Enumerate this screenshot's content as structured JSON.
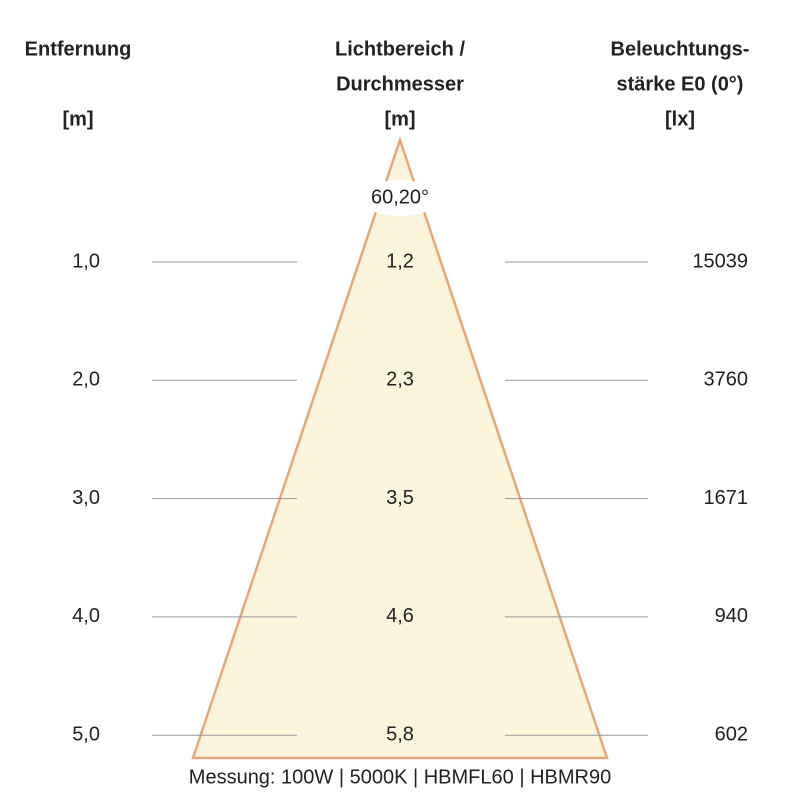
{
  "headers": {
    "distance": [
      "Entfernung",
      "[m]"
    ],
    "diameter": [
      "Lichtbereich /",
      "Durchmesser",
      "[m]"
    ],
    "illuminance": [
      "Beleuchtungs-",
      "stärke E0 (0°)",
      "[lx]"
    ]
  },
  "angle": "60,20°",
  "rows": [
    {
      "distance": "1,0",
      "diameter": "1,2",
      "illuminance": "15039"
    },
    {
      "distance": "2,0",
      "diameter": "2,3",
      "illuminance": "3760"
    },
    {
      "distance": "3,0",
      "diameter": "3,5",
      "illuminance": "1671"
    },
    {
      "distance": "4,0",
      "diameter": "4,6",
      "illuminance": "940"
    },
    {
      "distance": "5,0",
      "diameter": "5,8",
      "illuminance": "602"
    }
  ],
  "footer": "Messung: 100W | 5000K | HBMFL60 | HBMR90"
}
